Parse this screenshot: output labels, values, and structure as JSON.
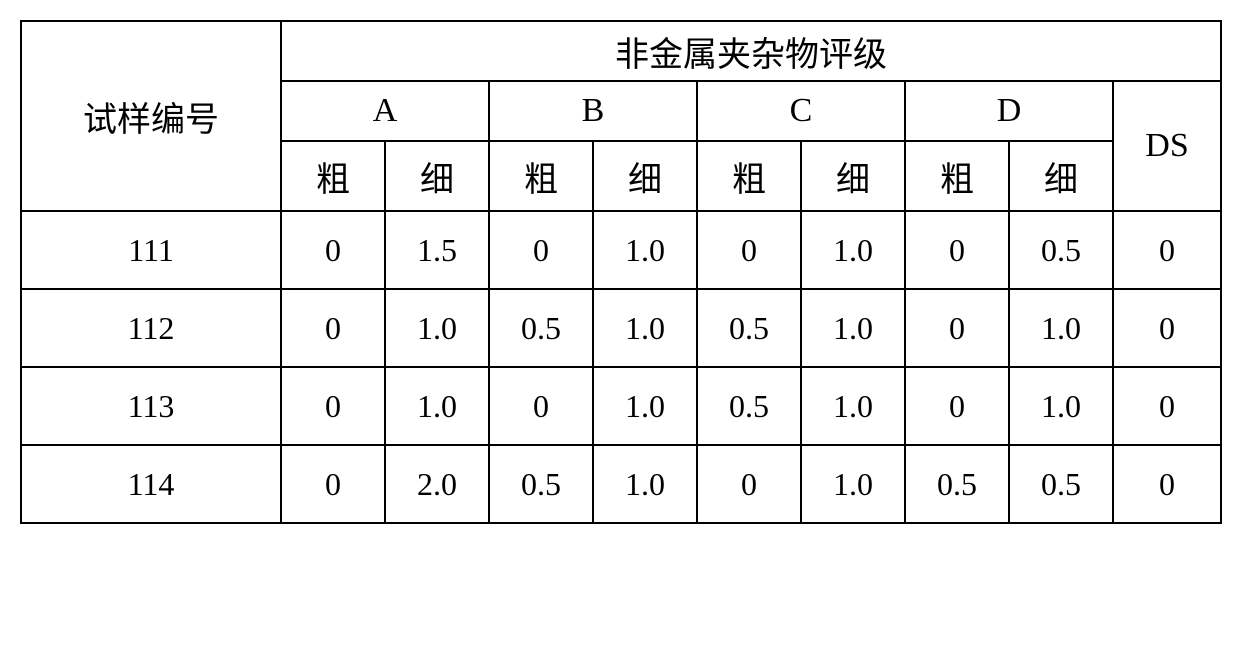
{
  "header": {
    "sample_label": "试样编号",
    "rating_title": "非金属夹杂物评级",
    "groups": [
      "A",
      "B",
      "C",
      "D"
    ],
    "ds_label": "DS",
    "sub_coarse": "粗",
    "sub_fine": "细"
  },
  "rows": [
    {
      "id": "111",
      "A_c": "0",
      "A_f": "1.5",
      "B_c": "0",
      "B_f": "1.0",
      "C_c": "0",
      "C_f": "1.0",
      "D_c": "0",
      "D_f": "0.5",
      "DS": "0"
    },
    {
      "id": "112",
      "A_c": "0",
      "A_f": "1.0",
      "B_c": "0.5",
      "B_f": "1.0",
      "C_c": "0.5",
      "C_f": "1.0",
      "D_c": "0",
      "D_f": "1.0",
      "DS": "0"
    },
    {
      "id": "113",
      "A_c": "0",
      "A_f": "1.0",
      "B_c": "0",
      "B_f": "1.0",
      "C_c": "0.5",
      "C_f": "1.0",
      "D_c": "0",
      "D_f": "1.0",
      "DS": "0"
    },
    {
      "id": "114",
      "A_c": "0",
      "A_f": "2.0",
      "B_c": "0.5",
      "B_f": "1.0",
      "C_c": "0",
      "C_f": "1.0",
      "D_c": "0.5",
      "D_f": "0.5",
      "DS": "0"
    }
  ],
  "style": {
    "border_color": "#000000",
    "background_color": "#ffffff",
    "text_color": "#000000",
    "header_fontsize": 34,
    "cell_fontsize": 32
  }
}
